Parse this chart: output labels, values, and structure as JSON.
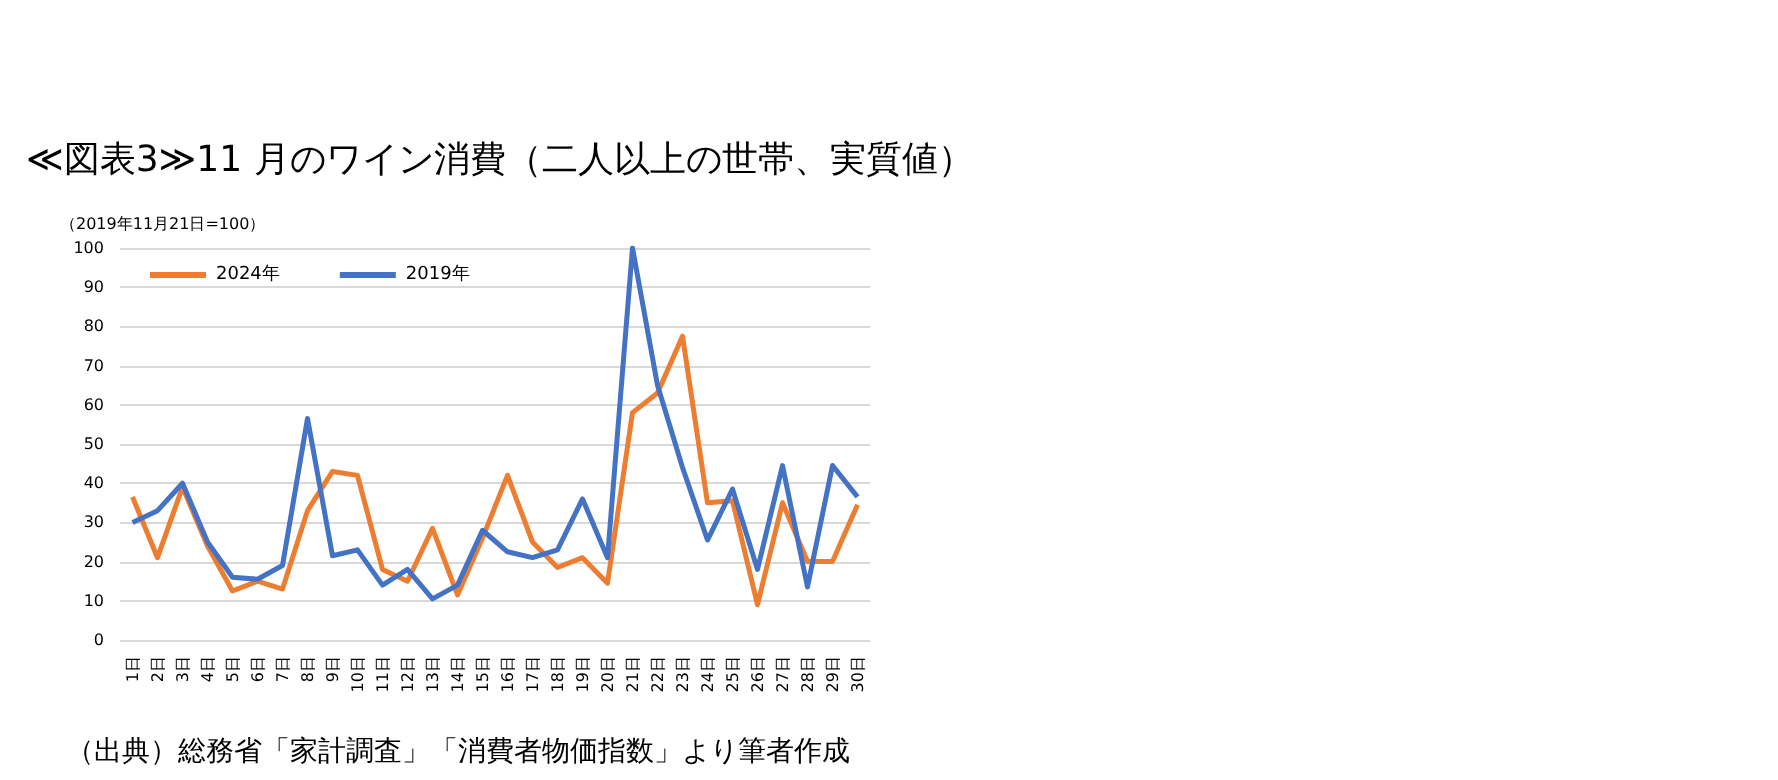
{
  "chart_data": {
    "type": "line",
    "title": "≪図表3≫11 月のワイン消費（二人以上の世帯、実質値）",
    "ylabel": "（2019年11月21日=100）",
    "categories": [
      "1日",
      "2日",
      "3日",
      "4日",
      "5日",
      "6日",
      "7日",
      "8日",
      "9日",
      "10日",
      "11日",
      "12日",
      "13日",
      "14日",
      "15日",
      "16日",
      "17日",
      "18日",
      "19日",
      "20日",
      "21日",
      "22日",
      "23日",
      "24日",
      "25日",
      "26日",
      "27日",
      "28日",
      "29日",
      "30日"
    ],
    "series": [
      {
        "name": "2024年",
        "color": "#ed7d31",
        "values": [
          36.5,
          21,
          39,
          24,
          12.5,
          15,
          13,
          33,
          43,
          42,
          18,
          15,
          28.5,
          11.5,
          26,
          42,
          25,
          18.5,
          21,
          14.5,
          58,
          63,
          77.5,
          35,
          35.5,
          9,
          35,
          20,
          20,
          34.5
        ]
      },
      {
        "name": "2019年",
        "color": "#4472c4",
        "values": [
          30,
          33,
          40,
          25,
          16,
          15.5,
          19,
          56.5,
          21.5,
          23,
          14,
          18,
          10.5,
          14,
          28,
          22.5,
          21,
          23,
          36,
          21,
          100,
          65,
          44,
          25.5,
          38.5,
          18,
          44.5,
          13.5,
          44.5,
          36.5
        ]
      }
    ],
    "ylim": [
      0,
      100
    ],
    "yticks": [
      0,
      10,
      20,
      30,
      40,
      50,
      60,
      70,
      80,
      90,
      100
    ],
    "grid": "y",
    "legend": "top left",
    "marker": "none",
    "line_style": "solid",
    "annotations": [
      "（出典）総務省「家計調査」「消費者物価指数」より筆者作成"
    ]
  }
}
